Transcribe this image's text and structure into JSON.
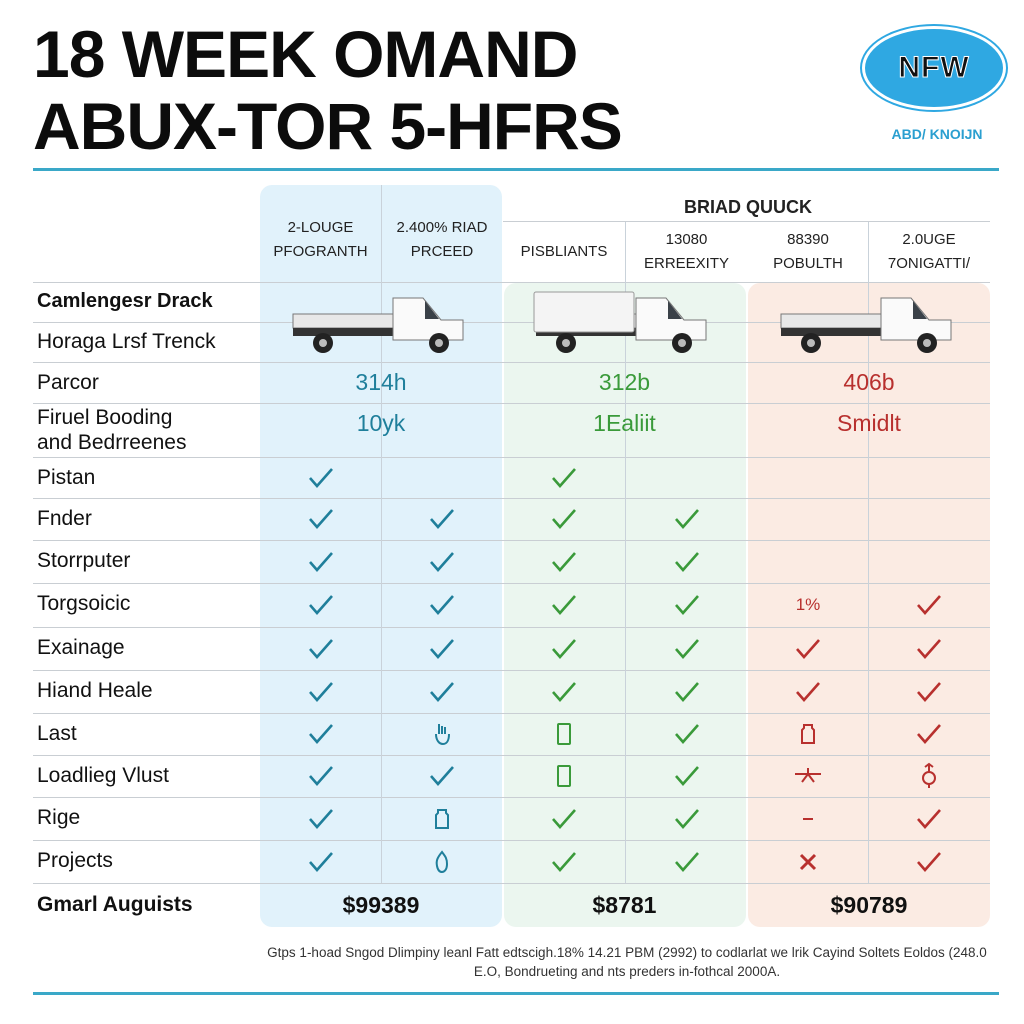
{
  "title": {
    "line1": "18 WEEK OMAND",
    "line2": "ABUX-TOR 5-HFRS"
  },
  "logo": {
    "text": "NFW",
    "subtitle": "ABD/ KNOIJN"
  },
  "colors": {
    "blue": "#1f7f9b",
    "green": "#3a9a3a",
    "red": "#b8302e",
    "blue_bg": "#e1f2fb",
    "green_bg": "#ebf6ef",
    "red_bg": "#fbebe3",
    "rule": "#3aa8c8"
  },
  "group_header": "BRIAD QUUCK",
  "columns": [
    {
      "line1": "2-LOUGE",
      "line2": "PFOGRANTH"
    },
    {
      "line1": "2.400% RIAD",
      "line2": "PRCEED"
    },
    {
      "line1": "PISBLIANTS",
      "line2": ""
    },
    {
      "line1": "13080",
      "line2": "ERREEXITY"
    },
    {
      "line1": "88390",
      "line2": "POBULTH"
    },
    {
      "line1": "2.0UGE",
      "line2": "7ONIGATTI/"
    }
  ],
  "truck_row": {
    "label1": "Camlengesr Drack",
    "label2": "Horaga Lrsf Trenck"
  },
  "parcor": {
    "label": "Parcor",
    "values": [
      "314h",
      "312b",
      "406b"
    ]
  },
  "fuel": {
    "label": "Firuel Booding\nand Bedrreenes",
    "values": [
      "10yk",
      "1Ealiit",
      "Smidlt"
    ]
  },
  "rows": [
    {
      "label": "Pistan",
      "cells": [
        "check",
        "",
        "check",
        "",
        "",
        ""
      ]
    },
    {
      "label": "Fnder",
      "cells": [
        "check",
        "check",
        "check",
        "check",
        "",
        ""
      ]
    },
    {
      "label": "Storrputer",
      "cells": [
        "check",
        "check",
        "check",
        "check",
        "",
        ""
      ]
    },
    {
      "label": "Torgsoicic",
      "cells": [
        "check",
        "check",
        "check",
        "check",
        "1%",
        "check"
      ]
    },
    {
      "label": "Exainage",
      "cells": [
        "check",
        "check",
        "check",
        "check",
        "check",
        "check"
      ]
    },
    {
      "label": "Hiand Heale",
      "cells": [
        "check",
        "check",
        "check",
        "check",
        "check",
        "check"
      ]
    },
    {
      "label": "Last",
      "cells": [
        "check",
        "hand-outline",
        "phone-outline",
        "check",
        "jar-outline",
        "check"
      ]
    },
    {
      "label": "Loadlieg Vlust",
      "cells": [
        "check",
        "check",
        "phone-outline",
        "check",
        "antenna",
        "mars-symbol"
      ]
    },
    {
      "label": "Rige",
      "cells": [
        "check",
        "jar-outline",
        "check",
        "check",
        "dash",
        "check"
      ]
    },
    {
      "label": "Projects",
      "cells": [
        "check",
        "drop-outline",
        "check",
        "check",
        "cross",
        "check"
      ]
    }
  ],
  "totals": {
    "label": "Gmarl Auguists",
    "values": [
      "$99389",
      "$8781",
      "$90789"
    ]
  },
  "footnote": "Gtps 1-hoad Sngod Dlimpiny leanl Fatt edtscigh.18% 14.21 PBM (2992) to codlarlat we lrik Cayind Soltets Eoldos (248.0 E.O, Bondrueting and nts preders in-fothcal 2000A."
}
